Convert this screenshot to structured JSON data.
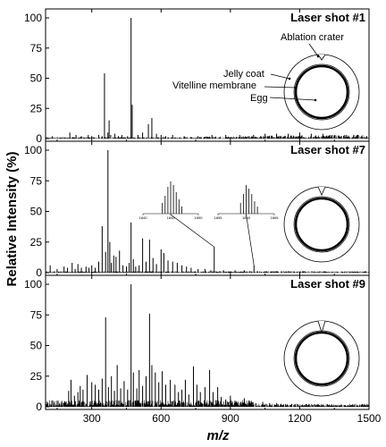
{
  "chart_data": {
    "type": "bar",
    "xlabel": "m/z",
    "ylabel": "Relative Intensity (%)",
    "xlim": [
      100,
      1500
    ],
    "ylim": [
      0,
      100
    ],
    "xticks": [
      300,
      600,
      900,
      1200,
      1500
    ],
    "yticks": [
      0,
      25,
      50,
      75,
      100
    ],
    "panels": [
      {
        "title": "Laser shot #1",
        "peaks": [
          [
            130,
            2
          ],
          [
            170,
            1
          ],
          [
            205,
            5
          ],
          [
            232,
            3
          ],
          [
            255,
            2
          ],
          [
            285,
            3
          ],
          [
            300,
            2
          ],
          [
            330,
            3
          ],
          [
            345,
            2
          ],
          [
            355,
            54
          ],
          [
            370,
            5
          ],
          [
            375,
            15
          ],
          [
            382,
            3
          ],
          [
            400,
            4
          ],
          [
            415,
            2
          ],
          [
            430,
            3
          ],
          [
            455,
            2
          ],
          [
            470,
            100
          ],
          [
            475,
            28
          ],
          [
            500,
            3
          ],
          [
            520,
            5
          ],
          [
            545,
            12
          ],
          [
            560,
            17
          ],
          [
            580,
            4
          ],
          [
            600,
            3
          ],
          [
            620,
            2
          ],
          [
            650,
            3
          ],
          [
            700,
            2
          ],
          [
            760,
            2
          ],
          [
            820,
            3
          ],
          [
            880,
            3
          ],
          [
            940,
            3
          ],
          [
            1000,
            3
          ],
          [
            1050,
            4
          ],
          [
            1100,
            4
          ],
          [
            1150,
            4
          ],
          [
            1200,
            5
          ],
          [
            1250,
            4
          ],
          [
            1300,
            4
          ],
          [
            1350,
            3
          ],
          [
            1400,
            3
          ],
          [
            1450,
            3
          ],
          [
            1490,
            2
          ]
        ],
        "annotations": [
          "Ablation crater",
          "Jelly coat",
          "Vitelline membrane",
          "Egg"
        ]
      },
      {
        "title": "Laser shot #7",
        "peaks": [
          [
            120,
            6
          ],
          [
            150,
            3
          ],
          [
            180,
            5
          ],
          [
            195,
            4
          ],
          [
            215,
            8
          ],
          [
            228,
            3
          ],
          [
            240,
            7
          ],
          [
            255,
            4
          ],
          [
            275,
            5
          ],
          [
            288,
            4
          ],
          [
            300,
            6
          ],
          [
            315,
            4
          ],
          [
            330,
            9
          ],
          [
            345,
            38
          ],
          [
            360,
            17
          ],
          [
            370,
            100
          ],
          [
            378,
            25
          ],
          [
            385,
            8
          ],
          [
            395,
            14
          ],
          [
            405,
            13
          ],
          [
            420,
            18
          ],
          [
            435,
            6
          ],
          [
            450,
            5
          ],
          [
            462,
            8
          ],
          [
            470,
            41
          ],
          [
            480,
            11
          ],
          [
            490,
            5
          ],
          [
            505,
            6
          ],
          [
            520,
            28
          ],
          [
            535,
            9
          ],
          [
            550,
            27
          ],
          [
            565,
            12
          ],
          [
            580,
            7
          ],
          [
            600,
            19
          ],
          [
            612,
            16
          ],
          [
            630,
            10
          ],
          [
            650,
            9
          ],
          [
            670,
            8
          ],
          [
            690,
            6
          ],
          [
            710,
            5
          ],
          [
            730,
            4
          ],
          [
            760,
            3
          ],
          [
            790,
            3
          ],
          [
            815,
            2
          ],
          [
            830,
            21
          ],
          [
            870,
            2
          ],
          [
            920,
            2
          ],
          [
            960,
            2
          ],
          [
            1002,
            6
          ],
          [
            1050,
            1
          ],
          [
            1100,
            1
          ]
        ],
        "insets": [
          {
            "xticks": [
              "1840",
              "1845",
              "1850"
            ],
            "peaks": [
              [
                1843.5,
                0.3
              ],
              [
                1844.0,
                0.5
              ],
              [
                1844.5,
                0.75
              ],
              [
                1845.0,
                0.9
              ],
              [
                1845.5,
                0.8
              ],
              [
                1846.0,
                0.6
              ],
              [
                1846.5,
                0.4
              ],
              [
                1847.0,
                0.2
              ]
            ]
          },
          {
            "xticks": [
              "1855",
              "1860",
              "1865"
            ],
            "peaks": [
              [
                1859.0,
                0.3
              ],
              [
                1859.5,
                0.55
              ],
              [
                1860.0,
                0.8
              ],
              [
                1860.5,
                0.7
              ],
              [
                1861.0,
                0.55
              ],
              [
                1861.5,
                0.35
              ],
              [
                1862.0,
                0.2
              ]
            ]
          }
        ]
      },
      {
        "title": "Laser shot #9",
        "peaks": [
          [
            110,
            2
          ],
          [
            150,
            5
          ],
          [
            170,
            4
          ],
          [
            200,
            13
          ],
          [
            210,
            22
          ],
          [
            225,
            9
          ],
          [
            240,
            12
          ],
          [
            250,
            17
          ],
          [
            262,
            14
          ],
          [
            280,
            26
          ],
          [
            300,
            20
          ],
          [
            315,
            18
          ],
          [
            330,
            14
          ],
          [
            345,
            23
          ],
          [
            360,
            73
          ],
          [
            372,
            16
          ],
          [
            385,
            25
          ],
          [
            398,
            13
          ],
          [
            410,
            34
          ],
          [
            425,
            15
          ],
          [
            440,
            21
          ],
          [
            455,
            14
          ],
          [
            470,
            100
          ],
          [
            480,
            28
          ],
          [
            495,
            15
          ],
          [
            505,
            30
          ],
          [
            520,
            17
          ],
          [
            535,
            25
          ],
          [
            550,
            76
          ],
          [
            560,
            34
          ],
          [
            575,
            28
          ],
          [
            590,
            20
          ],
          [
            605,
            29
          ],
          [
            620,
            18
          ],
          [
            640,
            22
          ],
          [
            660,
            18
          ],
          [
            675,
            12
          ],
          [
            690,
            14
          ],
          [
            705,
            22
          ],
          [
            720,
            10
          ],
          [
            740,
            33
          ],
          [
            755,
            18
          ],
          [
            770,
            12
          ],
          [
            790,
            16
          ],
          [
            810,
            30
          ],
          [
            825,
            12
          ],
          [
            845,
            16
          ],
          [
            860,
            8
          ],
          [
            880,
            6
          ],
          [
            900,
            9
          ],
          [
            920,
            5
          ],
          [
            945,
            4
          ],
          [
            960,
            7
          ],
          [
            980,
            5
          ],
          [
            1010,
            3
          ],
          [
            1040,
            4
          ],
          [
            1070,
            3
          ],
          [
            1100,
            3
          ],
          [
            1130,
            2
          ],
          [
            1180,
            2
          ],
          [
            1230,
            2
          ],
          [
            1300,
            1
          ],
          [
            1380,
            1
          ],
          [
            1450,
            1
          ]
        ]
      }
    ]
  }
}
